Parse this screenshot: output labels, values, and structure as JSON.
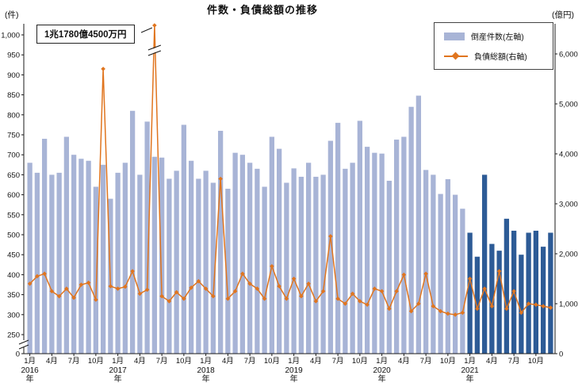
{
  "chart_data": {
    "type": "bar+line combo (monthly bankruptcies bar on left axis, total liabilities line on right axis)",
    "title": "件数・負債総額の推移",
    "left_axis": {
      "unit": "(件)",
      "ticks": [
        0,
        250,
        300,
        350,
        400,
        450,
        500,
        550,
        600,
        650,
        700,
        750,
        800,
        850,
        900,
        950,
        1000
      ],
      "axis_break_between": [
        0,
        250
      ]
    },
    "right_axis": {
      "unit": "(億円)",
      "ticks": [
        0,
        1000,
        2000,
        3000,
        4000,
        5000,
        6000
      ]
    },
    "legend": {
      "position": "top-right",
      "cases_label": "倒産件数(左軸)",
      "liabilities_label": "負債総額(右軸)"
    },
    "annotation": {
      "text": "1兆1780億4500万円",
      "applies_to": "2017-06 負債総額 (exceeds right axis, drawn with break marks)"
    },
    "x_axis": {
      "month_tick_labels": [
        "1月",
        "4月",
        "7月",
        "10月"
      ],
      "years": [
        "2016",
        "2017",
        "2018",
        "2019",
        "2020",
        "2021"
      ],
      "year_suffix": "年"
    },
    "x": [
      "2016-01",
      "2016-02",
      "2016-03",
      "2016-04",
      "2016-05",
      "2016-06",
      "2016-07",
      "2016-08",
      "2016-09",
      "2016-10",
      "2016-11",
      "2016-12",
      "2017-01",
      "2017-02",
      "2017-03",
      "2017-04",
      "2017-05",
      "2017-06",
      "2017-07",
      "2017-08",
      "2017-09",
      "2017-10",
      "2017-11",
      "2017-12",
      "2018-01",
      "2018-02",
      "2018-03",
      "2018-04",
      "2018-05",
      "2018-06",
      "2018-07",
      "2018-08",
      "2018-09",
      "2018-10",
      "2018-11",
      "2018-12",
      "2019-01",
      "2019-02",
      "2019-03",
      "2019-04",
      "2019-05",
      "2019-06",
      "2019-07",
      "2019-08",
      "2019-09",
      "2019-10",
      "2019-11",
      "2019-12",
      "2020-01",
      "2020-02",
      "2020-03",
      "2020-04",
      "2020-05",
      "2020-06",
      "2020-07",
      "2020-08",
      "2020-09",
      "2020-10",
      "2020-11",
      "2020-12",
      "2021-01",
      "2021-02",
      "2021-03",
      "2021-04",
      "2021-05",
      "2021-06",
      "2021-07",
      "2021-08",
      "2021-09",
      "2021-10",
      "2021-11",
      "2021-12"
    ],
    "series": [
      {
        "name": "倒産件数(左軸)",
        "type": "bar",
        "axis": "left",
        "unit": "件",
        "values": [
          680,
          655,
          740,
          650,
          655,
          745,
          700,
          690,
          685,
          620,
          675,
          590,
          655,
          680,
          810,
          650,
          783,
          695,
          693,
          640,
          660,
          775,
          685,
          640,
          660,
          630,
          760,
          615,
          705,
          700,
          680,
          665,
          620,
          745,
          715,
          630,
          666,
          645,
          680,
          645,
          650,
          735,
          780,
          665,
          680,
          785,
          720,
          705,
          703,
          635,
          738,
          745,
          820,
          848,
          662,
          650,
          602,
          639,
          600,
          565,
          505,
          445,
          650,
          477,
          460,
          540,
          510,
          450,
          505,
          510,
          470,
          505
        ]
      },
      {
        "name": "負債総額(右軸)",
        "type": "line",
        "axis": "right",
        "unit": "億円",
        "values": [
          1400,
          1550,
          1600,
          1250,
          1150,
          1300,
          1120,
          1380,
          1420,
          1080,
          5700,
          1350,
          1300,
          1340,
          1650,
          1200,
          1280,
          11780,
          1150,
          1050,
          1230,
          1100,
          1320,
          1450,
          1300,
          1150,
          3500,
          1100,
          1250,
          1600,
          1400,
          1300,
          1100,
          1750,
          1350,
          1100,
          1500,
          1150,
          1400,
          1050,
          1250,
          2350,
          1100,
          1000,
          1200,
          1050,
          980,
          1300,
          1250,
          900,
          1250,
          1580,
          850,
          1000,
          1600,
          950,
          850,
          800,
          780,
          820,
          1500,
          900,
          1300,
          950,
          1650,
          900,
          1250,
          820,
          1000,
          980,
          950,
          920
        ]
      }
    ],
    "colors": {
      "bar_light": "#a8b4d6",
      "bar_dark": "#2d5b96",
      "line": "#e0751f",
      "axis": "#1a1a1a"
    },
    "notes": "Bars for 2021 are dark blue; 2016-2020 bars light blue. Grid off. Left axis has a break between 0 and 250."
  }
}
